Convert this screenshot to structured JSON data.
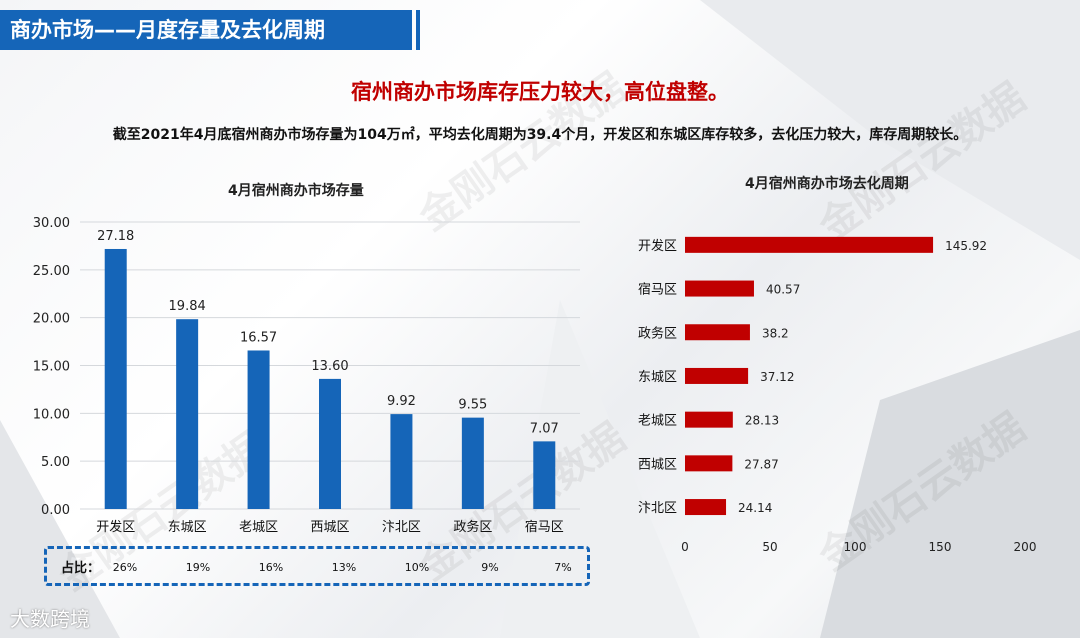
{
  "header": {
    "title": "商办市场——月度存量及去化周期"
  },
  "headline": "宿州商办市场库存压力较大，高位盘整。",
  "summary": "截至2021年4月底宿州商办市场存量为104万㎡，平均去化周期为39.4个月，开发区和东城区库存较多，去化压力较大，库存周期较长。",
  "watermark": "金刚石云数据",
  "logo": "大数跨境",
  "colors": {
    "bar_blue": "#1565b8",
    "bar_red": "#c00000",
    "header": "#1565b8"
  },
  "share": {
    "label": "占比：",
    "values": [
      "26%",
      "19%",
      "16%",
      "13%",
      "10%",
      "9%",
      "7%"
    ]
  },
  "chart_data": [
    {
      "type": "bar",
      "title": "4月宿州商办市场存量",
      "categories": [
        "开发区",
        "东城区",
        "老城区",
        "西城区",
        "汴北区",
        "政务区",
        "宿马区"
      ],
      "values": [
        27.18,
        19.84,
        16.57,
        13.6,
        9.92,
        9.55,
        7.07
      ],
      "value_labels": [
        "27.18",
        "19.84",
        "16.57",
        "13.60",
        "9.92",
        "9.55",
        "7.07"
      ],
      "yticks": [
        "0.00",
        "5.00",
        "10.00",
        "15.00",
        "20.00",
        "25.00",
        "30.00"
      ],
      "ylim": [
        0,
        30
      ],
      "grid": true
    },
    {
      "type": "bar",
      "orientation": "horizontal",
      "title": "4月宿州商办市场去化周期",
      "categories": [
        "开发区",
        "宿马区",
        "政务区",
        "东城区",
        "老城区",
        "西城区",
        "汴北区"
      ],
      "values": [
        145.92,
        40.57,
        38.2,
        37.12,
        28.13,
        27.87,
        24.14
      ],
      "value_labels": [
        "145.92",
        "40.57",
        "38.2",
        "37.12",
        "28.13",
        "27.87",
        "24.14"
      ],
      "xticks": [
        "0",
        "50",
        "100",
        "150",
        "200"
      ],
      "xlim": [
        0,
        200
      ],
      "grid": false
    }
  ]
}
